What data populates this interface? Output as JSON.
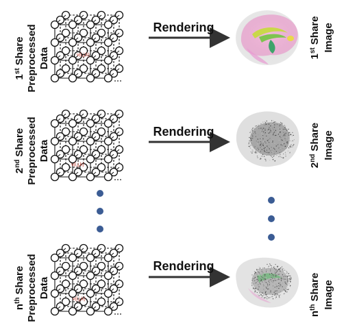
{
  "rows": [
    {
      "left": {
        "ordinal": "1",
        "suffix": "st",
        "line1": "Share",
        "line2": "Preprocessed",
        "line3": "Data"
      },
      "arrow_label": "Rendering",
      "right": {
        "ordinal": "1",
        "suffix": "st",
        "line1": "Share",
        "line2": "Image"
      },
      "voxel_label": "v(i,j,k)",
      "render_style": "color"
    },
    {
      "left": {
        "ordinal": "2",
        "suffix": "nd",
        "line1": "Share",
        "line2": "Preprocessed",
        "line3": "Data"
      },
      "arrow_label": "Rendering",
      "right": {
        "ordinal": "2",
        "suffix": "nd",
        "line1": "Share",
        "line2": "Image"
      },
      "voxel_label": "v(i,j,k)",
      "render_style": "noise"
    },
    {
      "left": {
        "ordinal": "n",
        "suffix": "th",
        "line1": "Share",
        "line2": "Preprocessed",
        "line3": "Data"
      },
      "arrow_label": "Rendering",
      "right": {
        "ordinal": "n",
        "suffix": "th",
        "line1": "Share",
        "line2": "Image"
      },
      "voxel_label": "v(i,j,k)",
      "render_style": "noise"
    }
  ],
  "colors": {
    "dots": "#3b5c94",
    "arrow": "#333333",
    "grid": "#111111",
    "voxel_label": "#c0392b"
  }
}
